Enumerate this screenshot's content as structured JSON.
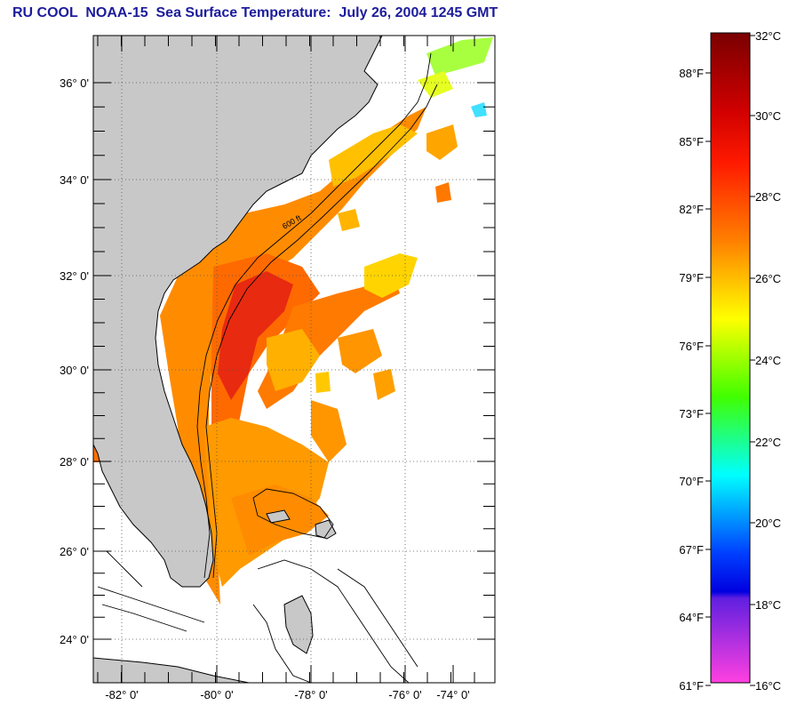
{
  "title": "RU COOL  NOAA-15  Sea Surface Temperature:  July 26, 2004 1245 GMT",
  "map": {
    "lat_labels": [
      "36° 0'",
      "34° 0'",
      "32° 0'",
      "30° 0'",
      "28° 0'",
      "26° 0'",
      "24° 0'"
    ],
    "lon_labels": [
      "-82° 0'",
      "-80° 0'",
      "-78° 0'",
      "-76° 0'",
      "-74° 0'"
    ],
    "depth_label": "600 ft",
    "colors": {
      "land": "#c8c8c8",
      "ocean": "#ffffff",
      "frame": "#000000"
    }
  },
  "colorbar": {
    "celsius": [
      "32°C",
      "30°C",
      "28°C",
      "26°C",
      "24°C",
      "22°C",
      "20°C",
      "18°C",
      "16°C"
    ],
    "fahrenheit": [
      "88°F",
      "85°F",
      "82°F",
      "79°F",
      "76°F",
      "73°F",
      "70°F",
      "67°F",
      "64°F",
      "61°F"
    ],
    "stops": [
      "#8b0000",
      "#ff0000",
      "#ff7f00",
      "#ffff00",
      "#00ff00",
      "#00ffff",
      "#0000ff",
      "#8000ff",
      "#ff40ff"
    ]
  }
}
